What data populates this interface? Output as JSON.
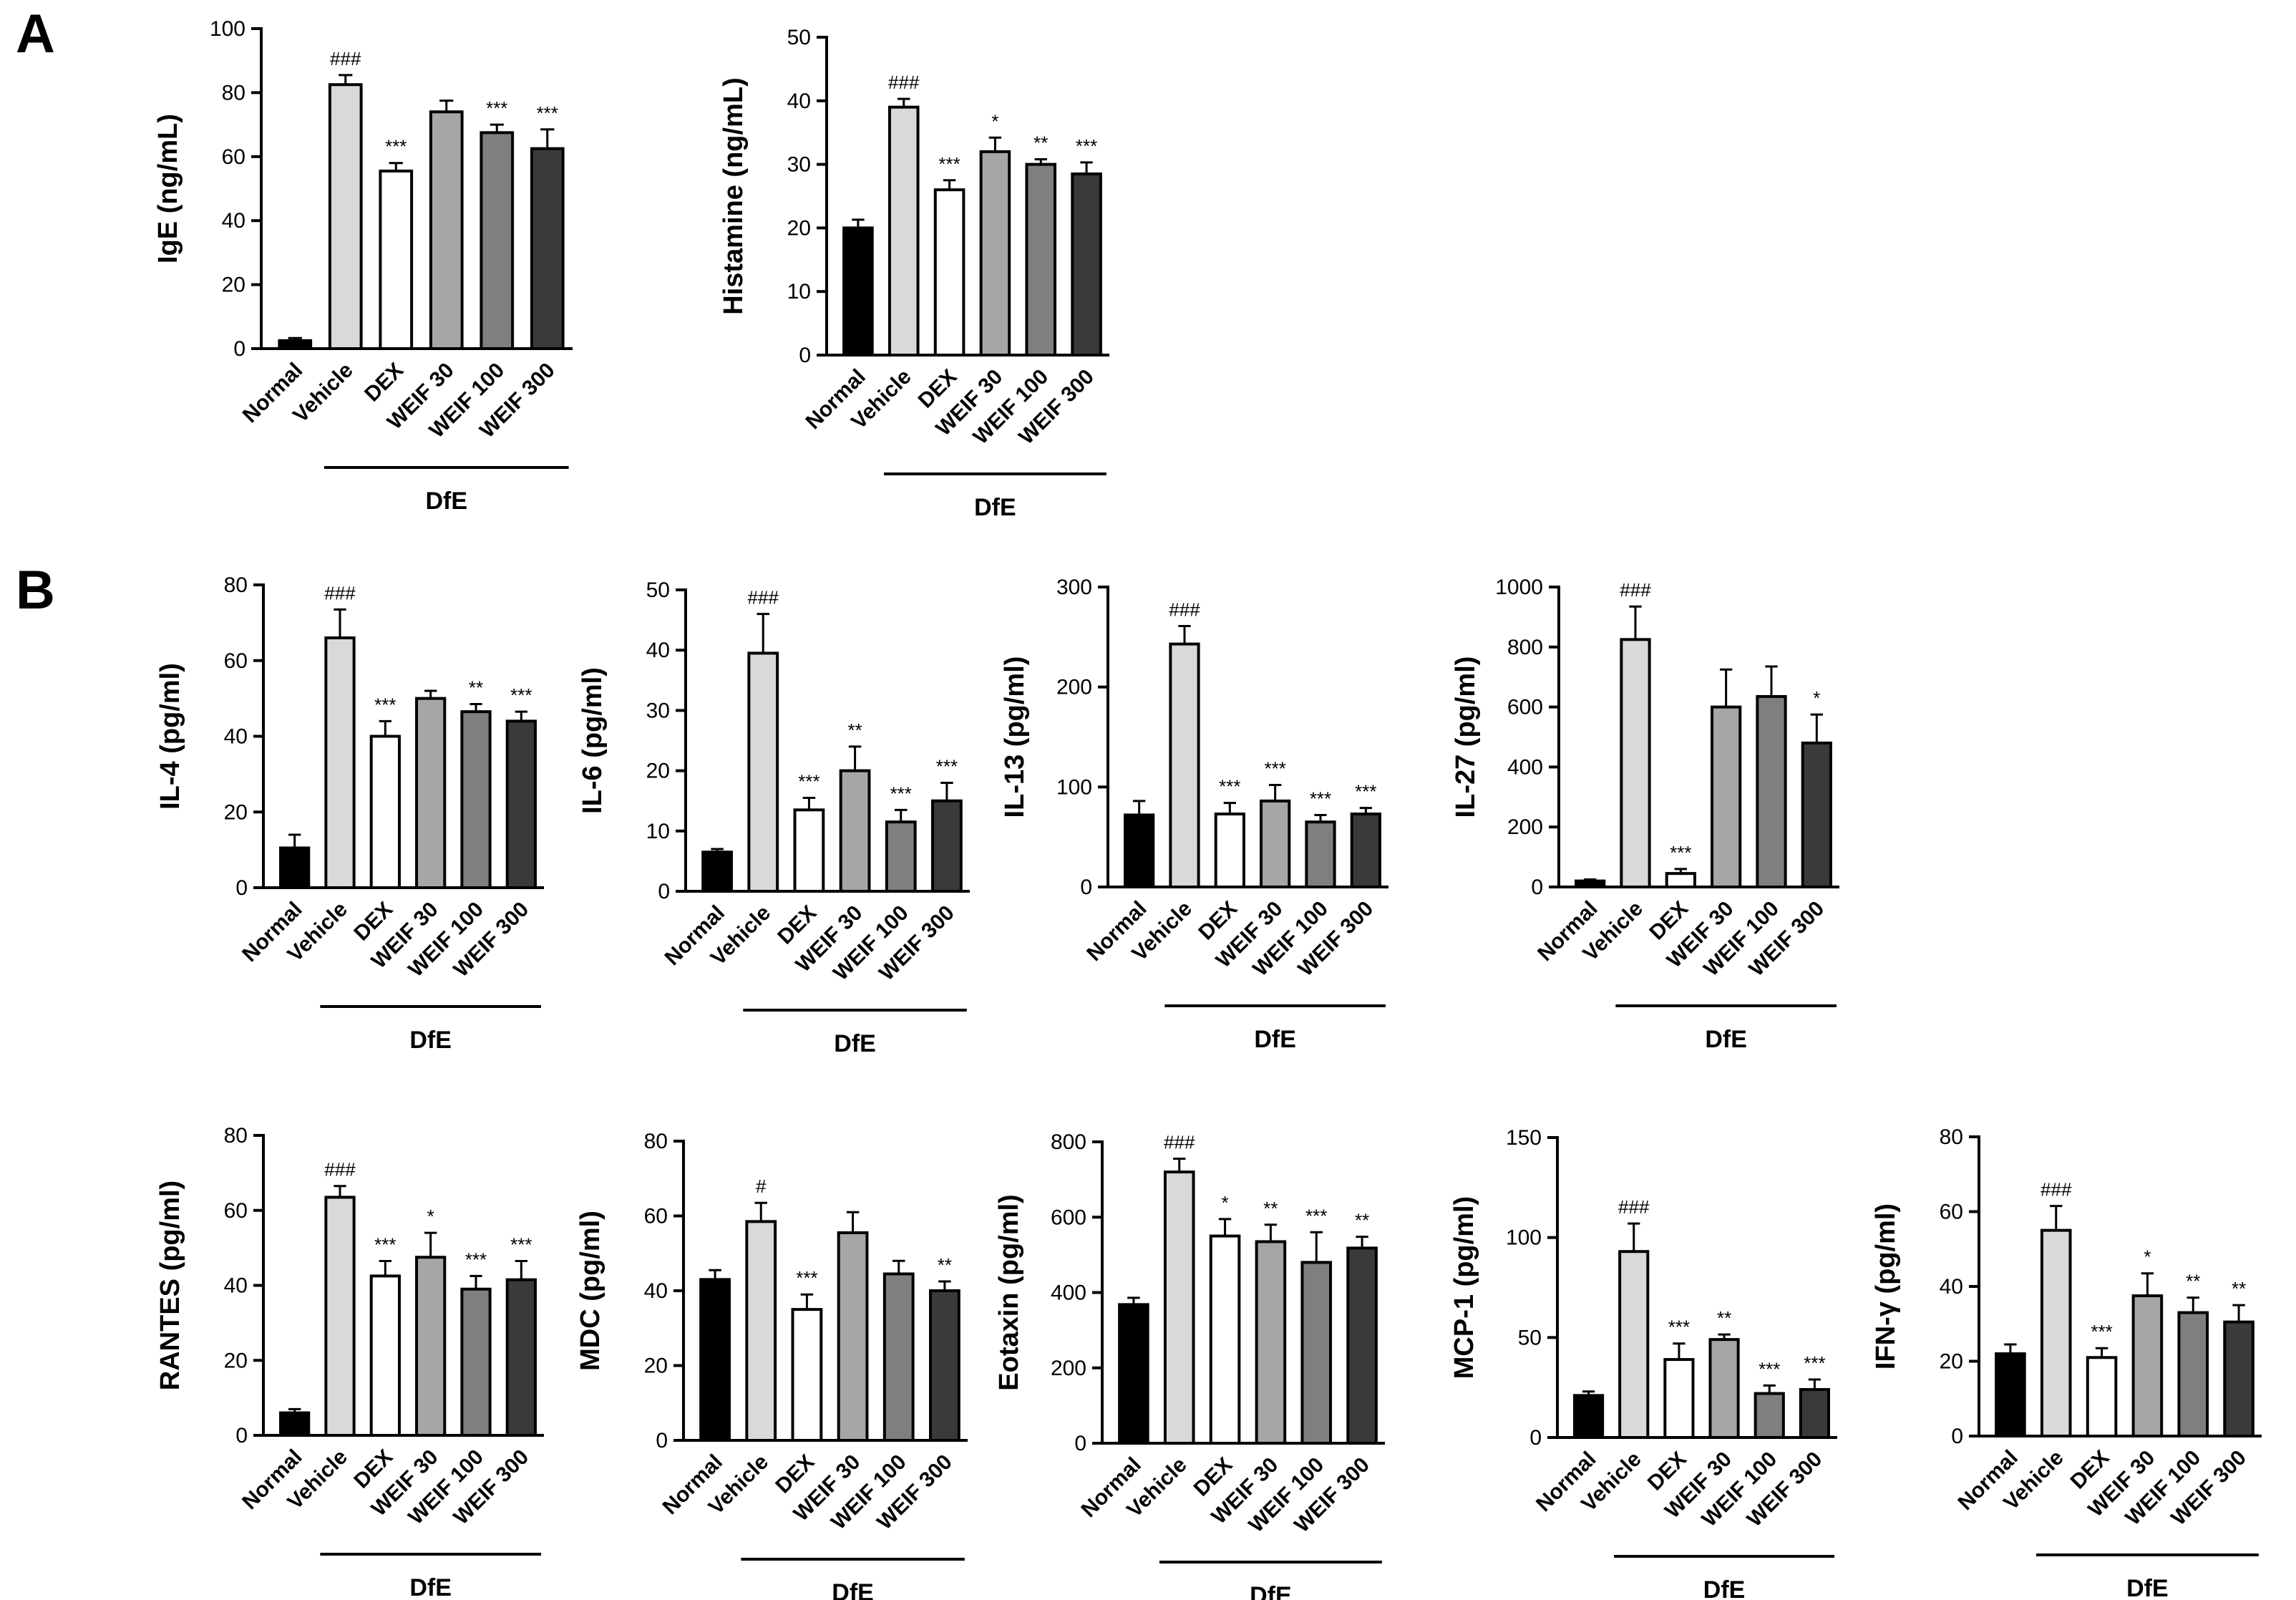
{
  "figure": {
    "panel_letters": [
      "A",
      "B"
    ],
    "palette": {
      "normal": "#000000",
      "vehicle": "#d9d9d9",
      "dex": "#ffffff",
      "weif30": "#a6a6a6",
      "weif100": "#7f7f7f",
      "weif300": "#3a3a3a",
      "stroke": "#000000"
    }
  },
  "chart_data": [
    {
      "type": "bar",
      "panel": "A",
      "group_label": "DfE",
      "ylabel": "IgE (ng/mL)",
      "ylim": [
        0,
        100
      ],
      "ticks": [
        0,
        20,
        40,
        60,
        80,
        100
      ],
      "categories": [
        "Normal",
        "Vehicle",
        "DEX",
        "WEIF 30",
        "WEIF 100",
        "WEIF 300"
      ],
      "values": [
        2.5,
        82.5,
        55.5,
        74,
        67.5,
        62.5
      ],
      "errors": [
        0.8,
        3,
        2.5,
        3.5,
        2.5,
        6
      ],
      "annotations": [
        "",
        "###",
        "***",
        "",
        "***",
        "***"
      ]
    },
    {
      "type": "bar",
      "panel": "A",
      "group_label": "DfE",
      "ylabel": "Histamine (ng/mL)",
      "ylim": [
        0,
        50
      ],
      "ticks": [
        0,
        10,
        20,
        30,
        40,
        50
      ],
      "categories": [
        "Normal",
        "Vehicle",
        "DEX",
        "WEIF 30",
        "WEIF 100",
        "WEIF 300"
      ],
      "values": [
        20,
        39,
        26,
        32,
        30,
        28.5
      ],
      "errors": [
        1.3,
        1.3,
        1.5,
        2.2,
        0.8,
        1.8
      ],
      "annotations": [
        "",
        "###",
        "***",
        "*",
        "**",
        "***"
      ]
    },
    {
      "type": "bar",
      "panel": "B",
      "group_label": "DfE",
      "ylabel": "IL-4 (pg/ml)",
      "ylim": [
        0,
        80
      ],
      "ticks": [
        0,
        20,
        40,
        60,
        80
      ],
      "categories": [
        "Normal",
        "Vehicle",
        "DEX",
        "WEIF 30",
        "WEIF 100",
        "WEIF 300"
      ],
      "values": [
        10.5,
        66,
        40,
        50,
        46.5,
        44
      ],
      "errors": [
        3.5,
        7.5,
        4,
        2,
        2,
        2.5
      ],
      "annotations": [
        "",
        "###",
        "***",
        "",
        "**",
        "***"
      ]
    },
    {
      "type": "bar",
      "panel": "B",
      "group_label": "DfE",
      "ylabel": "IL-6 (pg/ml)",
      "ylim": [
        0,
        50
      ],
      "ticks": [
        0,
        10,
        20,
        30,
        40,
        50
      ],
      "categories": [
        "Normal",
        "Vehicle",
        "DEX",
        "WEIF 30",
        "WEIF 100",
        "WEIF 300"
      ],
      "values": [
        6.5,
        39.5,
        13.5,
        20,
        11.5,
        15
      ],
      "errors": [
        0.5,
        6.5,
        2,
        4,
        2,
        3
      ],
      "annotations": [
        "",
        "###",
        "***",
        "**",
        "***",
        "***"
      ]
    },
    {
      "type": "bar",
      "panel": "B",
      "group_label": "DfE",
      "ylabel": "IL-13 (pg/ml)",
      "ylim": [
        0,
        300
      ],
      "ticks": [
        0,
        100,
        200,
        300
      ],
      "categories": [
        "Normal",
        "Vehicle",
        "DEX",
        "WEIF 30",
        "WEIF 100",
        "WEIF 300"
      ],
      "values": [
        72,
        243,
        73,
        86,
        65,
        73
      ],
      "errors": [
        14,
        18,
        11,
        16,
        7,
        6
      ],
      "annotations": [
        "",
        "###",
        "***",
        "***",
        "***",
        "***"
      ]
    },
    {
      "type": "bar",
      "panel": "B",
      "group_label": "DfE",
      "ylabel": "IL-27 (pg/ml)",
      "ylim": [
        0,
        1000
      ],
      "ticks": [
        0,
        200,
        400,
        600,
        800,
        1000
      ],
      "categories": [
        "Normal",
        "Vehicle",
        "DEX",
        "WEIF 30",
        "WEIF 100",
        "WEIF 300"
      ],
      "values": [
        20,
        825,
        45,
        600,
        635,
        480
      ],
      "errors": [
        5,
        110,
        15,
        125,
        100,
        95
      ],
      "annotations": [
        "",
        "###",
        "***",
        "",
        "",
        "*"
      ]
    },
    {
      "type": "bar",
      "panel": "B",
      "group_label": "DfE",
      "ylabel": "RANTES (pg/ml)",
      "ylim": [
        0,
        80
      ],
      "ticks": [
        0,
        20,
        40,
        60,
        80
      ],
      "categories": [
        "Normal",
        "Vehicle",
        "DEX",
        "WEIF 30",
        "WEIF 100",
        "WEIF 300"
      ],
      "values": [
        6,
        63.5,
        42.5,
        47.5,
        39,
        41.5
      ],
      "errors": [
        1,
        3,
        4,
        6.5,
        3.5,
        5
      ],
      "annotations": [
        "",
        "###",
        "***",
        "*",
        "***",
        "***"
      ]
    },
    {
      "type": "bar",
      "panel": "B",
      "group_label": "DfE",
      "ylabel": "MDC (pg/ml)",
      "ylim": [
        0,
        80
      ],
      "ticks": [
        0,
        20,
        40,
        60,
        80
      ],
      "categories": [
        "Normal",
        "Vehicle",
        "DEX",
        "WEIF 30",
        "WEIF 100",
        "WEIF 300"
      ],
      "values": [
        43,
        58.5,
        35,
        55.5,
        44.5,
        40
      ],
      "errors": [
        2.5,
        5,
        4,
        5.5,
        3.5,
        2.5
      ],
      "annotations": [
        "",
        "#",
        "***",
        "",
        "",
        "**"
      ]
    },
    {
      "type": "bar",
      "panel": "B",
      "group_label": "DfE",
      "ylabel": "Eotaxin (pg/ml)",
      "ylim": [
        0,
        800
      ],
      "ticks": [
        0,
        200,
        400,
        600,
        800
      ],
      "categories": [
        "Normal",
        "Vehicle",
        "DEX",
        "WEIF 30",
        "WEIF 100",
        "WEIF 300"
      ],
      "values": [
        368,
        720,
        550,
        535,
        480,
        518
      ],
      "errors": [
        18,
        35,
        45,
        45,
        80,
        30
      ],
      "annotations": [
        "",
        "###",
        "*",
        "**",
        "***",
        "**"
      ]
    },
    {
      "type": "bar",
      "panel": "B",
      "group_label": "DfE",
      "ylabel": "MCP-1 (pg/ml)",
      "ylim": [
        0,
        150
      ],
      "ticks": [
        0,
        50,
        100,
        150
      ],
      "categories": [
        "Normal",
        "Vehicle",
        "DEX",
        "WEIF 30",
        "WEIF 100",
        "WEIF 300"
      ],
      "values": [
        21,
        93,
        39,
        49,
        22,
        24
      ],
      "errors": [
        2,
        14,
        8,
        2.5,
        4,
        5
      ],
      "annotations": [
        "",
        "###",
        "***",
        "**",
        "***",
        "***"
      ]
    },
    {
      "type": "bar",
      "panel": "B",
      "group_label": "DfE",
      "ylabel": "IFN-γ (pg/ml)",
      "ylim": [
        0,
        80
      ],
      "ticks": [
        0,
        20,
        40,
        60,
        80
      ],
      "categories": [
        "Normal",
        "Vehicle",
        "DEX",
        "WEIF 30",
        "WEIF 100",
        "WEIF 300"
      ],
      "values": [
        22,
        55,
        21,
        37.5,
        33,
        30.5
      ],
      "errors": [
        2.5,
        6.5,
        2.5,
        6,
        4,
        4.5
      ],
      "annotations": [
        "",
        "###",
        "***",
        "*",
        "**",
        "**"
      ]
    }
  ]
}
